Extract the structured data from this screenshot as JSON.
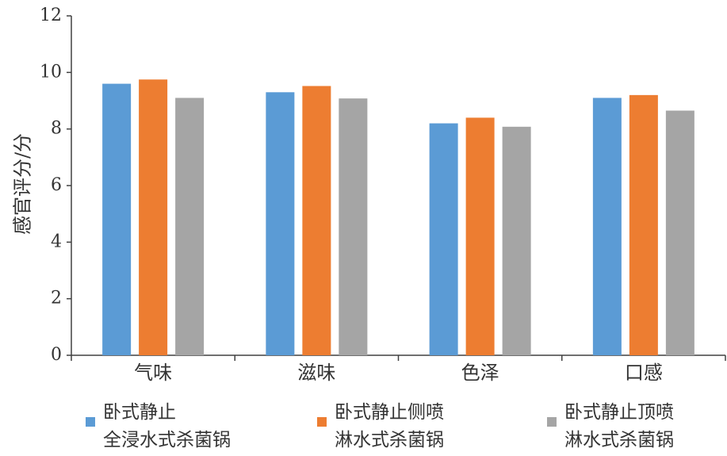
{
  "chart_data": {
    "type": "bar",
    "title": "",
    "xlabel": "",
    "ylabel": "感官评分/分",
    "ylim": [
      0,
      12
    ],
    "yticks": [
      0,
      2,
      4,
      6,
      8,
      10,
      12
    ],
    "grid": false,
    "legend_position": "bottom",
    "categories": [
      "气味",
      "滋味",
      "色泽",
      "口感"
    ],
    "series": [
      {
        "name": "卧式静止全浸水式杀菌锅",
        "legend_lines": [
          "卧式静止",
          "全浸水式杀菌锅"
        ],
        "color": "#5B9BD5",
        "values": [
          9.6,
          9.3,
          8.2,
          9.1
        ]
      },
      {
        "name": "卧式静止侧喷淋水式杀菌锅",
        "legend_lines": [
          "卧式静止侧喷",
          "淋水式杀菌锅"
        ],
        "color": "#ED7D31",
        "values": [
          9.75,
          9.52,
          8.4,
          9.2
        ]
      },
      {
        "name": "卧式静止顶喷淋水式杀菌锅",
        "legend_lines": [
          "卧式静止顶喷",
          "淋水式杀菌锅"
        ],
        "color": "#A5A5A5",
        "values": [
          9.1,
          9.08,
          8.08,
          8.65
        ]
      }
    ]
  }
}
